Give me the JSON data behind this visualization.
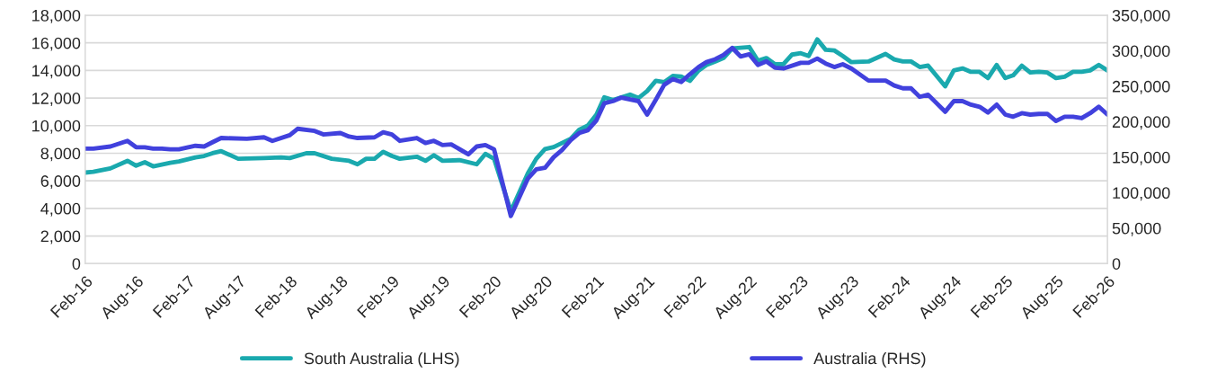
{
  "chart_data": {
    "type": "line",
    "xlim": [
      "2016-02",
      "2026-02"
    ],
    "xticks": [
      {
        "value": "2016-02",
        "label": "Feb-16"
      },
      {
        "value": "2016-08",
        "label": "Aug-16"
      },
      {
        "value": "2017-02",
        "label": "Feb-17"
      },
      {
        "value": "2017-08",
        "label": "Aug-17"
      },
      {
        "value": "2018-02",
        "label": "Feb-18"
      },
      {
        "value": "2018-08",
        "label": "Aug-18"
      },
      {
        "value": "2019-02",
        "label": "Feb-19"
      },
      {
        "value": "2019-08",
        "label": "Aug-19"
      },
      {
        "value": "2020-02",
        "label": "Feb-20"
      },
      {
        "value": "2020-08",
        "label": "Aug-20"
      },
      {
        "value": "2021-02",
        "label": "Feb-21"
      },
      {
        "value": "2021-08",
        "label": "Aug-21"
      },
      {
        "value": "2022-02",
        "label": "Feb-22"
      },
      {
        "value": "2022-08",
        "label": "Aug-22"
      },
      {
        "value": "2023-02",
        "label": "Feb-23"
      },
      {
        "value": "2023-08",
        "label": "Aug-23"
      },
      {
        "value": "2024-02",
        "label": "Feb-24"
      },
      {
        "value": "2024-08",
        "label": "Aug-24"
      },
      {
        "value": "2025-02",
        "label": "Feb-25"
      },
      {
        "value": "2025-08",
        "label": "Aug-25"
      },
      {
        "value": "2026-02",
        "label": "Feb-26"
      }
    ],
    "ylim": [
      0,
      18000
    ],
    "yticks": [
      0,
      {
        "value": 2000,
        "label": "2,000"
      },
      {
        "value": 4000,
        "label": "4,000"
      },
      {
        "value": 6000,
        "label": "6,000"
      },
      {
        "value": 8000,
        "label": "8,000"
      },
      {
        "value": 10000,
        "label": "10,000"
      },
      {
        "value": 12000,
        "label": "12,000"
      },
      {
        "value": 14000,
        "label": "14,000"
      },
      {
        "value": 16000,
        "label": "16,000"
      },
      {
        "value": 18000,
        "label": "18,000"
      }
    ],
    "y2lim": [
      0,
      350000
    ],
    "y2ticks": [
      0,
      {
        "value": 50000,
        "label": "50,000"
      },
      {
        "value": 100000,
        "label": "100,000"
      },
      {
        "value": 150000,
        "label": "150,000"
      },
      {
        "value": 200000,
        "label": "200,000"
      },
      {
        "value": 250000,
        "label": "250,000"
      },
      {
        "value": 300000,
        "label": "300,000"
      },
      {
        "value": 350000,
        "label": "350,000"
      }
    ],
    "grid": "y",
    "legend": "bottom",
    "line_style": "solid",
    "marker": "none",
    "series": [
      {
        "name": "South Australia (LHS)",
        "color": "#1aa9ae",
        "x": [
          "2016-02",
          "2016-03",
          "2016-05",
          "2016-07",
          "2016-08",
          "2016-09",
          "2016-10",
          "2016-12",
          "2017-01",
          "2017-03",
          "2017-04",
          "2017-05",
          "2017-06",
          "2017-08",
          "2017-11",
          "2018-01",
          "2018-02",
          "2018-04",
          "2018-05",
          "2018-07",
          "2018-09",
          "2018-10",
          "2018-11",
          "2018-12",
          "2019-01",
          "2019-02",
          "2019-03",
          "2019-05",
          "2019-06",
          "2019-07",
          "2019-08",
          "2019-10",
          "2019-12",
          "2020-01",
          "2020-02",
          "2020-04",
          "2020-06",
          "2020-07",
          "2020-08",
          "2020-09",
          "2020-11",
          "2020-12",
          "2021-01",
          "2021-02",
          "2021-03",
          "2021-04",
          "2021-06",
          "2021-07",
          "2021-08",
          "2021-09",
          "2021-10",
          "2021-11",
          "2021-12",
          "2022-01",
          "2022-02",
          "2022-03",
          "2022-04",
          "2022-05",
          "2022-06",
          "2022-08",
          "2022-09",
          "2022-10",
          "2022-11",
          "2022-12",
          "2023-01",
          "2023-02",
          "2023-03",
          "2023-04",
          "2023-05",
          "2023-06",
          "2023-07",
          "2023-08",
          "2023-10",
          "2023-12",
          "2024-01",
          "2024-02",
          "2024-03",
          "2024-04",
          "2024-05",
          "2024-07",
          "2024-08",
          "2024-09",
          "2024-10",
          "2024-11",
          "2024-12",
          "2025-01",
          "2025-02",
          "2025-03",
          "2025-04",
          "2025-05",
          "2025-06",
          "2025-07",
          "2025-08",
          "2025-09",
          "2025-10",
          "2025-11",
          "2025-12",
          "2026-01",
          "2026-02"
        ],
        "values": [
          6600,
          6650,
          6900,
          7450,
          7100,
          7350,
          7050,
          7300,
          7400,
          7700,
          7800,
          8000,
          8150,
          7600,
          7650,
          7700,
          7650,
          8000,
          8000,
          7600,
          7450,
          7200,
          7600,
          7600,
          8100,
          7800,
          7600,
          7750,
          7450,
          7850,
          7450,
          7500,
          7200,
          7950,
          7600,
          3800,
          6550,
          7600,
          8300,
          8450,
          9050,
          9700,
          10000,
          10800,
          12050,
          11850,
          12250,
          12000,
          12500,
          13250,
          13150,
          13600,
          13550,
          13250,
          14000,
          14400,
          14650,
          14900,
          15600,
          15700,
          14700,
          14900,
          14450,
          14450,
          15150,
          15250,
          15050,
          16250,
          15500,
          15450,
          15050,
          14600,
          14650,
          15200,
          14800,
          14650,
          14650,
          14250,
          14350,
          12850,
          14000,
          14150,
          13900,
          13900,
          13450,
          14400,
          13450,
          13650,
          14350,
          13850,
          13900,
          13850,
          13450,
          13550,
          13900,
          13900,
          14000,
          14400,
          14000
        ]
      },
      {
        "name": "Australia (RHS)",
        "color": "#4141dd",
        "axis": "y2",
        "x": [
          "2016-02",
          "2016-03",
          "2016-05",
          "2016-07",
          "2016-08",
          "2016-09",
          "2016-10",
          "2016-11",
          "2016-12",
          "2017-01",
          "2017-03",
          "2017-04",
          "2017-05",
          "2017-06",
          "2017-09",
          "2017-11",
          "2017-12",
          "2018-02",
          "2018-03",
          "2018-05",
          "2018-06",
          "2018-08",
          "2018-09",
          "2018-10",
          "2018-12",
          "2019-01",
          "2019-02",
          "2019-03",
          "2019-05",
          "2019-06",
          "2019-07",
          "2019-08",
          "2019-09",
          "2019-11",
          "2019-12",
          "2020-01",
          "2020-02",
          "2020-04",
          "2020-06",
          "2020-07",
          "2020-08",
          "2020-09",
          "2020-10",
          "2020-11",
          "2020-12",
          "2021-01",
          "2021-02",
          "2021-03",
          "2021-04",
          "2021-05",
          "2021-07",
          "2021-08",
          "2021-09",
          "2021-10",
          "2021-11",
          "2021-12",
          "2022-01",
          "2022-02",
          "2022-03",
          "2022-04",
          "2022-05",
          "2022-06",
          "2022-07",
          "2022-08",
          "2022-09",
          "2022-10",
          "2022-11",
          "2022-12",
          "2023-02",
          "2023-03",
          "2023-04",
          "2023-05",
          "2023-06",
          "2023-07",
          "2023-08",
          "2023-10",
          "2023-12",
          "2024-01",
          "2024-02",
          "2024-03",
          "2024-04",
          "2024-05",
          "2024-07",
          "2024-08",
          "2024-09",
          "2024-10",
          "2024-11",
          "2024-12",
          "2025-01",
          "2025-02",
          "2025-03",
          "2025-04",
          "2025-05",
          "2025-06",
          "2025-07",
          "2025-08",
          "2025-09",
          "2025-10",
          "2025-11",
          "2025-12",
          "2026-01",
          "2026-02"
        ],
        "values": [
          162000,
          162000,
          165000,
          173000,
          164000,
          164000,
          162000,
          162000,
          161000,
          161000,
          166000,
          165000,
          171000,
          177000,
          176000,
          178000,
          173000,
          181000,
          190000,
          187000,
          182000,
          184000,
          179000,
          177000,
          178000,
          185000,
          182000,
          173000,
          177000,
          170000,
          173000,
          167000,
          168000,
          154000,
          165000,
          167000,
          161000,
          67000,
          120000,
          133000,
          135000,
          150000,
          160000,
          174000,
          184000,
          188000,
          202000,
          226000,
          229000,
          234000,
          229000,
          210000,
          231000,
          252000,
          260000,
          256000,
          267000,
          277000,
          284000,
          288000,
          294000,
          304000,
          292000,
          295000,
          280000,
          285000,
          276000,
          275000,
          283000,
          283000,
          289000,
          282000,
          277000,
          281000,
          275000,
          258000,
          258000,
          251000,
          247000,
          247000,
          235000,
          238000,
          214000,
          229000,
          229000,
          224000,
          221000,
          213000,
          224000,
          210000,
          207000,
          212000,
          210000,
          211000,
          211000,
          201000,
          207000,
          207000,
          205000,
          212000,
          221000,
          210000
        ]
      }
    ]
  }
}
